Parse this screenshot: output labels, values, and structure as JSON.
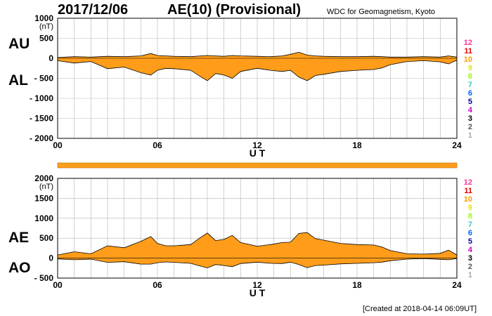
{
  "header": {
    "date": "2017/12/06",
    "title": "AE(10) (Provisional)",
    "source": "WDC for Geomagnetism, Kyoto",
    "created": "[Created at 2018-04-14 06:09UT]"
  },
  "legend_numbers": [
    "12",
    "11",
    "10",
    "9",
    "8",
    "7",
    "6",
    "5",
    "4",
    "3",
    "2",
    "1"
  ],
  "legend_colors": [
    "#ff3399",
    "#e60000",
    "#ff9900",
    "#e6e600",
    "#99ff00",
    "#33cccc",
    "#0066ff",
    "#000099",
    "#cc00cc",
    "#000000",
    "#555555",
    "#aaaaaa"
  ],
  "colors": {
    "fill": "#ff9d1a",
    "line": "#000000",
    "grid": "#b5b5b5"
  },
  "chart_data": [
    {
      "type": "area",
      "panel_labels": [
        "AU",
        "AL"
      ],
      "xlabel": "U T",
      "ylabel_unit": "(nT)",
      "xlim": [
        0,
        24
      ],
      "ylim": [
        -2000,
        1000
      ],
      "x_ticks": [
        "00",
        "06",
        "12",
        "18",
        "24"
      ],
      "y_ticks": [
        "1000",
        "500",
        "0",
        "- 500",
        "- 1000",
        "- 1500",
        "- 2000"
      ],
      "grid": true,
      "x_hours": [
        0,
        1,
        2,
        3,
        4,
        5,
        5.6,
        6,
        6.5,
        7,
        8,
        8.6,
        9,
        9.5,
        10,
        10.5,
        11,
        12,
        12.8,
        13.5,
        14,
        14.5,
        15,
        15.5,
        16,
        17,
        18,
        19,
        19.5,
        20,
        21,
        22,
        23,
        23.5,
        24
      ],
      "series": [
        {
          "name": "AU",
          "values": [
            20,
            40,
            30,
            50,
            40,
            60,
            120,
            70,
            60,
            50,
            40,
            60,
            70,
            60,
            50,
            70,
            60,
            50,
            40,
            60,
            100,
            150,
            80,
            60,
            50,
            40,
            40,
            50,
            40,
            30,
            30,
            40,
            30,
            60,
            30
          ]
        },
        {
          "name": "AL",
          "values": [
            -60,
            -120,
            -80,
            -260,
            -220,
            -360,
            -420,
            -300,
            -250,
            -260,
            -300,
            -460,
            -560,
            -380,
            -420,
            -500,
            -330,
            -250,
            -300,
            -330,
            -300,
            -470,
            -560,
            -430,
            -400,
            -330,
            -300,
            -280,
            -240,
            -160,
            -80,
            -60,
            -90,
            -140,
            -50
          ]
        }
      ]
    },
    {
      "type": "area",
      "panel_labels": [
        "AE",
        "AO"
      ],
      "xlabel": "U T",
      "ylabel_unit": "(nT)",
      "xlim": [
        0,
        24
      ],
      "ylim": [
        -500,
        2000
      ],
      "x_ticks": [
        "00",
        "06",
        "12",
        "18",
        "24"
      ],
      "y_ticks": [
        "2000",
        "1500",
        "1000",
        "500",
        "0",
        "- 500"
      ],
      "grid": true,
      "x_hours": [
        0,
        1,
        2,
        3,
        4,
        5,
        5.6,
        6,
        6.5,
        7,
        8,
        8.6,
        9,
        9.5,
        10,
        10.5,
        11,
        12,
        12.8,
        13.5,
        14,
        14.5,
        15,
        15.5,
        16,
        17,
        18,
        19,
        19.5,
        20,
        21,
        22,
        23,
        23.5,
        24
      ],
      "series": [
        {
          "name": "AE",
          "values": [
            80,
            160,
            110,
            310,
            260,
            420,
            540,
            370,
            310,
            310,
            340,
            520,
            630,
            440,
            470,
            570,
            390,
            300,
            340,
            390,
            400,
            620,
            640,
            490,
            450,
            370,
            340,
            330,
            280,
            190,
            110,
            100,
            120,
            200,
            80
          ]
        },
        {
          "name": "AO",
          "values": [
            -20,
            -40,
            -25,
            -105,
            -90,
            -150,
            -150,
            -115,
            -95,
            -105,
            -130,
            -200,
            -245,
            -160,
            -185,
            -215,
            -135,
            -100,
            -130,
            -135,
            -100,
            -160,
            -240,
            -185,
            -175,
            -145,
            -130,
            -115,
            -100,
            -65,
            -25,
            -10,
            -30,
            -40,
            -10
          ]
        }
      ]
    }
  ]
}
